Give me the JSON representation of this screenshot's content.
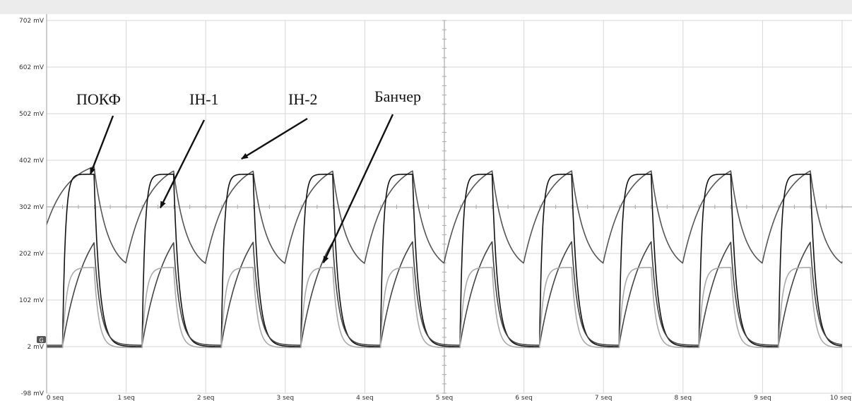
{
  "chart_data": {
    "type": "line",
    "xlim": [
      0,
      10
    ],
    "ylim": [
      -98,
      702
    ],
    "y_ticks": [
      {
        "value": 702,
        "label": "702 mV"
      },
      {
        "value": 602,
        "label": "602 mV"
      },
      {
        "value": 502,
        "label": "502 mV"
      },
      {
        "value": 402,
        "label": "402 mV"
      },
      {
        "value": 302,
        "label": "302 mV"
      },
      {
        "value": 202,
        "label": "202 mV"
      },
      {
        "value": 102,
        "label": "102 mV"
      },
      {
        "value": 2,
        "label": "2 mV"
      },
      {
        "value": -98,
        "label": "-98 mV"
      }
    ],
    "x_ticks": [
      {
        "value": 0,
        "label": "0 seq"
      },
      {
        "value": 1,
        "label": "1 seq"
      },
      {
        "value": 2,
        "label": "2 seq"
      },
      {
        "value": 3,
        "label": "3 seq"
      },
      {
        "value": 4,
        "label": "4 seq"
      },
      {
        "value": 5,
        "label": "5 seq"
      },
      {
        "value": 6,
        "label": "6 seq"
      },
      {
        "value": 7,
        "label": "7 seq"
      },
      {
        "value": 8,
        "label": "8 seq"
      },
      {
        "value": 9,
        "label": "9 seq"
      },
      {
        "value": 10,
        "label": "10 seq"
      }
    ],
    "grid": true,
    "period": 1.0,
    "series": [
      {
        "name": "IH-2",
        "color": "#555555",
        "low": 160,
        "high": 405,
        "start_offset": 262,
        "rise": 0.28,
        "fall": 0.17,
        "on": 0.0,
        "off": 0.6
      },
      {
        "name": "ПОКФ",
        "color": "#111111",
        "low": 2,
        "high": 372,
        "rise": 0.035,
        "fall": 0.07,
        "on": 0.2,
        "off": 0.6
      },
      {
        "name": "IH-1",
        "color": "#444444",
        "low": 5,
        "high": 305,
        "rise": 0.3,
        "fall": 0.08,
        "on": 0.2,
        "off": 0.6
      },
      {
        "name": "Банчер",
        "color": "#aaaaaa",
        "low": 0,
        "high": 172,
        "rise": 0.05,
        "fall": 0.06,
        "on": 0.2,
        "off": 0.6
      }
    ],
    "annotations": [
      {
        "text": "ПОКФ",
        "target_x": 0.55,
        "target_y": 372
      },
      {
        "text": "IH-1",
        "target_x": 1.43,
        "target_y": 300
      },
      {
        "text": "IH-2",
        "target_x": 2.45,
        "target_y": 405
      },
      {
        "text": "Банчер",
        "target_x": 3.48,
        "target_y": 182
      }
    ],
    "ground_marker": "G"
  }
}
